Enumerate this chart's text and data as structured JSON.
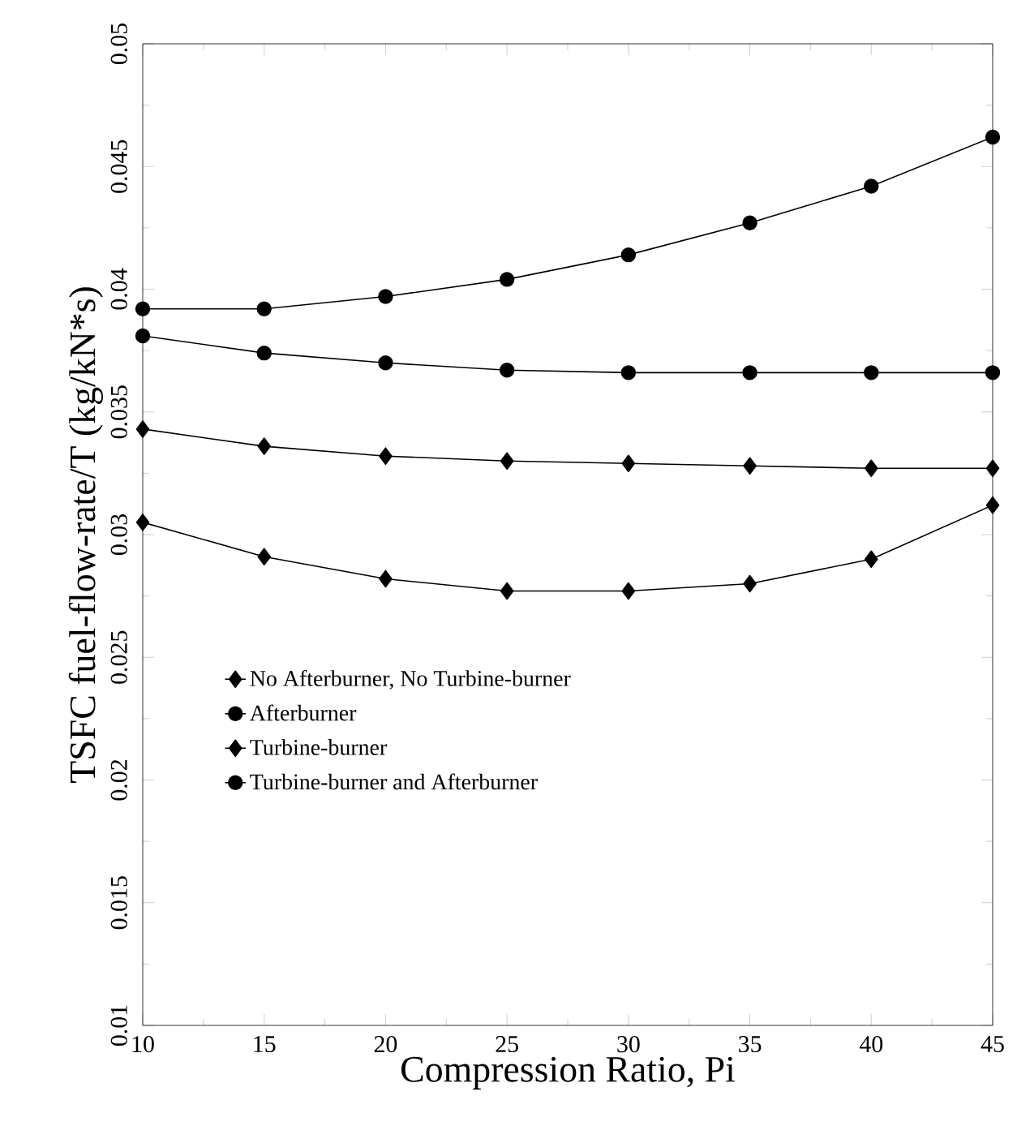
{
  "chart_data": {
    "type": "line",
    "xlabel": "Compression Ratio, Pi",
    "ylabel": "TSFC fuel-flow-rate/T (kg/kN*s)",
    "x": [
      10,
      15,
      20,
      25,
      30,
      35,
      40,
      45
    ],
    "series": [
      {
        "name": "No Afterburner, No Turbine-burner",
        "color": "#000000",
        "marker": "diamond",
        "values": [
          0.0305,
          0.0291,
          0.0282,
          0.0277,
          0.0277,
          0.028,
          0.029,
          0.0312
        ]
      },
      {
        "name": "Afterburner",
        "color": "#000000",
        "marker": "circle",
        "values": [
          0.0392,
          0.0392,
          0.0397,
          0.0404,
          0.0414,
          0.0427,
          0.0442,
          0.0462
        ]
      },
      {
        "name": "Turbine-burner",
        "color": "#000000",
        "marker": "diamond",
        "values": [
          0.0343,
          0.0336,
          0.0332,
          0.033,
          0.0329,
          0.0328,
          0.0327,
          0.0327
        ]
      },
      {
        "name": "Turbine-burner and Afterburner",
        "color": "#000000",
        "marker": "circle",
        "values": [
          0.0381,
          0.0374,
          0.037,
          0.0367,
          0.0366,
          0.0366,
          0.0366,
          0.0366
        ]
      }
    ],
    "xlim": [
      10,
      45
    ],
    "xticks": [
      10,
      15,
      20,
      25,
      30,
      35,
      40,
      45
    ],
    "ylim": [
      0.01,
      0.05
    ],
    "yticks": [
      {
        "value": 0.01,
        "label": "0.01"
      },
      {
        "value": 0.015,
        "label": "0.015"
      },
      {
        "value": 0.02,
        "label": "0.02"
      },
      {
        "value": 0.025,
        "label": "0.025"
      },
      {
        "value": 0.03,
        "label": "0.03"
      },
      {
        "value": 0.035,
        "label": "0.035"
      },
      {
        "value": 0.04,
        "label": "0.04"
      },
      {
        "value": 0.045,
        "label": "0.045"
      },
      {
        "value": 0.05,
        "label": "0.05"
      }
    ],
    "grid": false,
    "legend": "center left",
    "line_style": "solid"
  }
}
